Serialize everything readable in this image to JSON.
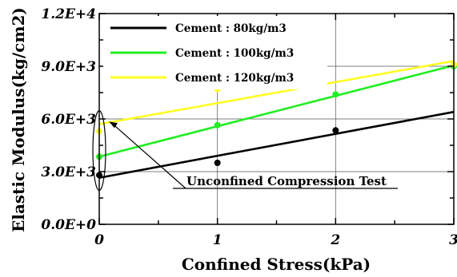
{
  "chart_data": {
    "type": "scatter",
    "xlabel": "Confined Stress(kPa)",
    "ylabel": "Elastic Modulus(kg/cm2)",
    "xlim": [
      0,
      3
    ],
    "ylim": [
      0,
      12000
    ],
    "x_ticks": [
      0,
      1,
      2,
      3
    ],
    "x_tick_labels": [
      "0",
      "1",
      "2",
      "3"
    ],
    "y_ticks": [
      0,
      3000,
      6000,
      9000,
      12000
    ],
    "y_tick_labels": [
      "0.0E+0",
      "3.0E+3",
      "6.0E+3",
      "9.0E+3",
      "1.2E+4"
    ],
    "grid": true,
    "legend_position": "top-left",
    "series": [
      {
        "name": "Cement : 80kg/m3",
        "color": "#000000",
        "points": [
          {
            "x": 0,
            "y": 2800
          },
          {
            "x": 1,
            "y": 3500
          },
          {
            "x": 2,
            "y": 5350
          }
        ],
        "fit_line": [
          {
            "x": 0,
            "y": 2650
          },
          {
            "x": 3,
            "y": 6400
          }
        ]
      },
      {
        "name": "Cement : 100kg/m3",
        "color": "#22ee22",
        "points": [
          {
            "x": 0,
            "y": 3850
          },
          {
            "x": 1,
            "y": 5650
          },
          {
            "x": 2,
            "y": 7400
          },
          {
            "x": 3,
            "y": 9000
          }
        ],
        "fit_line": [
          {
            "x": 0,
            "y": 3850
          },
          {
            "x": 3,
            "y": 9050
          }
        ]
      },
      {
        "name": "Cement : 120kg/m3",
        "color": "#ffff22",
        "points": [
          {
            "x": 0,
            "y": 5300
          },
          {
            "x": 1,
            "y": 7700
          },
          {
            "x": 3,
            "y": 9100
          }
        ],
        "fit_line": [
          {
            "x": 0,
            "y": 5700
          },
          {
            "x": 3,
            "y": 9300
          }
        ]
      }
    ],
    "annotation": {
      "text": "Unconfined  Compression Test",
      "target": {
        "x": 0,
        "y": 4200
      }
    }
  }
}
